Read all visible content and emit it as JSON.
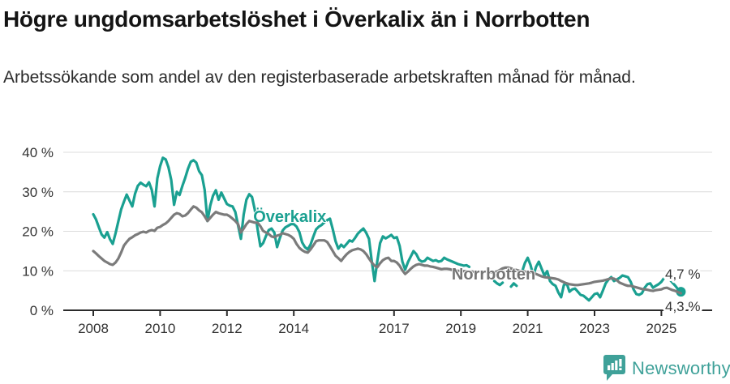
{
  "header": {
    "title": "Högre ungdomsarbetslöshet i Överkalix än i Norrbotten",
    "subtitle": "Arbetssökande som andel av den registerbaserade arbetskraften månad för månad."
  },
  "colors": {
    "accent_teal": "#1AA091",
    "line_gray": "#7B7B7B",
    "gray_label": "#757575",
    "axis_text": "#333333",
    "axis_line": "#2B2B2B",
    "gridline": "#DCDCDC",
    "brand_teal": "#3FA199"
  },
  "chart_data": {
    "type": "line",
    "title": "Högre ungdomsarbetslöshet i Överkalix än i Norrbotten",
    "subtitle": "Arbetssökande som andel av den registerbaserade arbetskraften månad för månad.",
    "xlabel": "",
    "ylabel": "",
    "x_unit": "month",
    "x_start": "2008-01",
    "x_end": "2025-08",
    "x_ticks": [
      2008,
      2010,
      2012,
      2014,
      2017,
      2019,
      2021,
      2023,
      2025
    ],
    "y_ticks": [
      0,
      10,
      20,
      30,
      40
    ],
    "y_tick_suffix": " %",
    "ylim": [
      0,
      40
    ],
    "grid": true,
    "legend_position": "inline",
    "series": [
      {
        "name": "Överkalix",
        "color": "#1AA091",
        "end_label": "4,7 %",
        "end_value": 4.7,
        "end_dot": true,
        "label_anchor": {
          "year": 2013.88,
          "value": 23.8
        },
        "values": [
          24.3,
          23.0,
          21.0,
          19.2,
          18.4,
          19.8,
          18.0,
          16.8,
          19.5,
          22.5,
          25.5,
          27.5,
          29.3,
          27.8,
          26.3,
          29.5,
          31.5,
          32.3,
          31.8,
          31.4,
          32.4,
          30.5,
          26.3,
          33.4,
          36.5,
          38.6,
          38.2,
          36.2,
          33.0,
          26.7,
          30.0,
          29.2,
          31.5,
          33.5,
          35.8,
          37.6,
          38.0,
          37.4,
          35.2,
          34.2,
          30.5,
          22.6,
          26.5,
          29.0,
          30.4,
          28.0,
          29.8,
          28.3,
          26.9,
          26.5,
          26.3,
          24.9,
          21.5,
          18.1,
          24.2,
          28.0,
          29.4,
          28.7,
          25.5,
          20.5,
          16.2,
          17.0,
          18.8,
          20.3,
          20.7,
          19.7,
          16.0,
          18.3,
          20.2,
          21.0,
          21.4,
          21.8,
          21.8,
          21.2,
          19.8,
          17.2,
          16.0,
          15.4,
          16.6,
          18.6,
          20.5,
          21.2,
          21.6,
          22.3,
          22.8,
          23.2,
          20.5,
          17.5,
          15.6,
          16.6,
          16.0,
          16.8,
          17.7,
          17.4,
          18.3,
          19.4,
          20.1,
          20.7,
          19.6,
          18.1,
          12.5,
          7.4,
          12.5,
          17.0,
          18.7,
          18.2,
          18.6,
          19.1,
          18.3,
          18.5,
          16.3,
          12.3,
          10.3,
          12.2,
          13.6,
          15.0,
          14.2,
          12.8,
          12.3,
          12.5,
          13.3,
          12.9,
          12.5,
          12.7,
          12.3,
          12.5,
          13.3,
          12.9,
          12.6,
          12.3,
          12.0,
          11.7,
          11.5,
          11.3,
          11.4,
          11.0,
          null,
          null,
          null,
          null,
          null,
          null,
          null,
          null,
          7.4,
          6.8,
          6.4,
          7.0,
          null,
          null,
          6.0,
          6.8,
          6.2,
          null,
          9.8,
          12.0,
          13.3,
          11.5,
          8.8,
          11.0,
          12.3,
          10.5,
          8.8,
          9.9,
          7.4,
          6.6,
          6.2,
          4.5,
          3.3,
          6.4,
          6.8,
          4.7,
          5.3,
          5.5,
          4.7,
          3.9,
          3.7,
          3.1,
          2.5,
          3.3,
          4.1,
          4.3,
          3.3,
          5.0,
          6.8,
          7.8,
          8.4,
          7.4,
          7.8,
          8.2,
          8.8,
          8.6,
          8.4,
          7.2,
          5.3,
          4.1,
          3.9,
          4.3,
          5.7,
          6.6,
          6.8,
          5.7,
          6.2,
          6.6,
          7.2,
          8.2,
          8.4,
          7.8,
          7.0,
          6.2,
          5.3,
          4.7
        ]
      },
      {
        "name": "Norrbotten",
        "color": "#7B7B7B",
        "label_color": "#757575",
        "end_label": "4,3 %",
        "end_value": 4.3,
        "end_dot": false,
        "label_anchor": {
          "year": 2019.98,
          "value": 9.2
        },
        "values": [
          15.0,
          14.4,
          13.7,
          13.1,
          12.5,
          12.1,
          11.7,
          11.5,
          12.1,
          13.1,
          14.6,
          16.4,
          17.3,
          18.1,
          18.5,
          19.0,
          19.3,
          19.7,
          19.9,
          19.7,
          20.1,
          20.3,
          20.1,
          20.9,
          21.1,
          21.6,
          22.0,
          22.6,
          23.4,
          24.2,
          24.6,
          24.4,
          23.8,
          24.0,
          24.6,
          25.5,
          26.3,
          26.0,
          25.3,
          24.8,
          23.8,
          22.6,
          23.4,
          24.2,
          24.9,
          24.6,
          24.4,
          24.2,
          24.2,
          23.8,
          23.2,
          22.6,
          21.8,
          19.7,
          20.7,
          21.8,
          22.6,
          22.4,
          22.2,
          22.2,
          21.3,
          20.1,
          19.7,
          19.3,
          18.7,
          18.5,
          18.9,
          19.1,
          19.5,
          19.3,
          19.1,
          18.7,
          18.1,
          16.8,
          15.8,
          15.2,
          14.8,
          14.6,
          15.4,
          16.4,
          17.5,
          17.7,
          17.7,
          17.7,
          17.3,
          16.2,
          15.0,
          13.8,
          13.2,
          12.5,
          13.4,
          14.2,
          14.8,
          15.2,
          15.4,
          15.6,
          15.4,
          15.0,
          14.2,
          13.1,
          12.1,
          11.3,
          10.9,
          11.9,
          12.7,
          13.1,
          13.3,
          12.5,
          12.5,
          12.1,
          11.3,
          10.1,
          9.2,
          9.8,
          10.5,
          11.1,
          11.5,
          11.7,
          11.5,
          11.3,
          11.3,
          11.1,
          11.0,
          10.8,
          10.6,
          10.4,
          10.5,
          10.5,
          10.4,
          10.2,
          10.1,
          10.0,
          10.0,
          9.9,
          9.9,
          9.8,
          9.8,
          9.7,
          9.7,
          9.8,
          9.8,
          9.7,
          9.7,
          9.6,
          9.7,
          9.8,
          10.2,
          10.6,
          10.8,
          10.8,
          10.6,
          10.4,
          10.2,
          10.0,
          9.9,
          9.8,
          9.7,
          9.6,
          9.5,
          9.2,
          8.9,
          8.6,
          8.4,
          8.3,
          8.2,
          8.1,
          8.0,
          7.8,
          7.4,
          7.1,
          6.8,
          6.6,
          6.5,
          6.4,
          6.4,
          6.5,
          6.6,
          6.7,
          6.8,
          7.0,
          7.2,
          7.3,
          7.4,
          7.5,
          7.7,
          7.9,
          8.1,
          8.0,
          7.6,
          7.0,
          6.7,
          6.4,
          6.2,
          6.2,
          6.0,
          5.8,
          5.6,
          5.4,
          5.3,
          5.2,
          5.0,
          4.9,
          5.1,
          5.2,
          5.3,
          5.6,
          5.7,
          5.4,
          5.1,
          4.9,
          4.6,
          4.3
        ]
      }
    ]
  },
  "footer": {
    "brand": "Newsworthy",
    "logo_icon": "newsworthy-speech-bubble-bar-chart-icon"
  }
}
